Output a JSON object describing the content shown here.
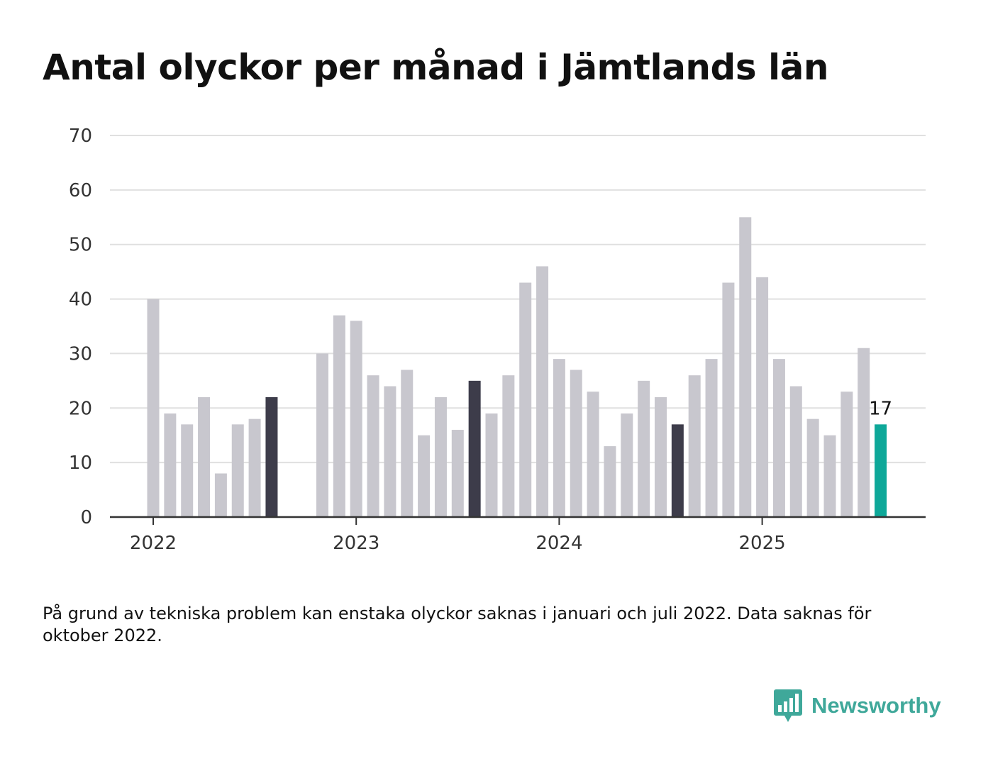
{
  "title": "Antal olyckor per månad i Jämtlands län",
  "note": "På grund av tekniska problem kan enstaka olyckor saknas i januari och juli 2022. Data saknas för oktober 2022.",
  "brand": {
    "name": "Newsworthy"
  },
  "colors": {
    "bar_default": "#c8c7ce",
    "bar_highlight": "#3d3c4a",
    "bar_latest": "#0ea899",
    "grid": "#e0e0e0",
    "axis": "#333333",
    "brand": "#3fa89a"
  },
  "chart_data": {
    "type": "bar",
    "title": "Antal olyckor per månad i Jämtlands län",
    "xlabel": "",
    "ylabel": "",
    "ylim": [
      0,
      70
    ],
    "yticks": [
      0,
      10,
      20,
      30,
      40,
      50,
      60,
      70
    ],
    "xticks": [
      "2022",
      "2023",
      "2024",
      "2025"
    ],
    "grid": true,
    "categories": [
      "2022-01",
      "2022-02",
      "2022-03",
      "2022-04",
      "2022-05",
      "2022-06",
      "2022-07",
      "2022-08",
      "2022-09",
      "2022-10",
      "2022-11",
      "2022-12",
      "2023-01",
      "2023-02",
      "2023-03",
      "2023-04",
      "2023-05",
      "2023-06",
      "2023-07",
      "2023-08",
      "2023-09",
      "2023-10",
      "2023-11",
      "2023-12",
      "2024-01",
      "2024-02",
      "2024-03",
      "2024-04",
      "2024-05",
      "2024-06",
      "2024-07",
      "2024-08",
      "2024-09",
      "2024-10",
      "2024-11",
      "2024-12",
      "2025-01",
      "2025-02",
      "2025-03",
      "2025-04",
      "2025-05",
      "2025-06",
      "2025-07",
      "2025-08"
    ],
    "values": [
      40,
      19,
      17,
      22,
      8,
      17,
      18,
      22,
      null,
      null,
      30,
      37,
      36,
      26,
      24,
      27,
      15,
      22,
      16,
      25,
      19,
      26,
      43,
      46,
      29,
      27,
      23,
      13,
      19,
      25,
      22,
      17,
      26,
      29,
      43,
      55,
      44,
      29,
      24,
      18,
      15,
      23,
      31,
      17
    ],
    "highlight_months": [
      "2022-08",
      "2023-08",
      "2024-08"
    ],
    "latest": {
      "month": "2025-08",
      "label": "17"
    }
  }
}
